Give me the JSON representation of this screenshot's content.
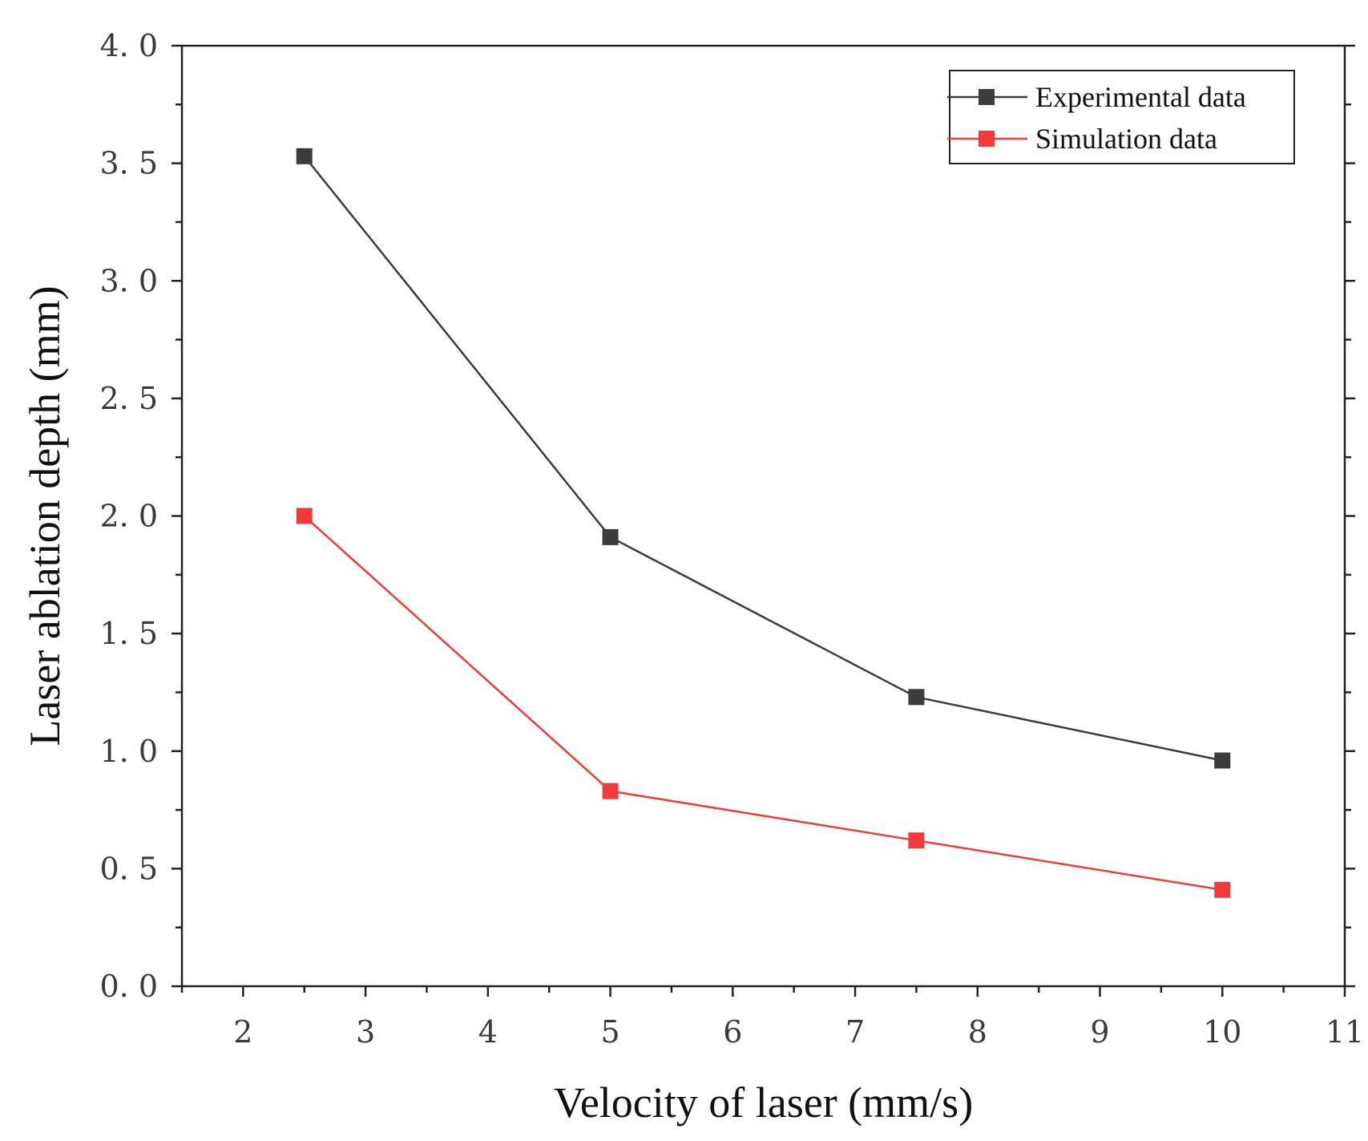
{
  "chart_data": {
    "type": "line",
    "title": "",
    "xlabel": "Velocity of laser (mm/s)",
    "ylabel": "Laser ablation depth (mm)",
    "xlim": [
      1.5,
      11
    ],
    "ylim": [
      0,
      4
    ],
    "x_ticks": [
      2,
      3,
      4,
      5,
      6,
      7,
      8,
      9,
      10,
      11
    ],
    "x_tick_labels": [
      "2",
      "3",
      "4",
      "5",
      "6",
      "7",
      "8",
      "9",
      "10",
      "11"
    ],
    "y_ticks": [
      0,
      0.5,
      1.0,
      1.5,
      2.0,
      2.5,
      3.0,
      3.5,
      4.0
    ],
    "y_tick_labels": [
      "0. 0",
      "0. 5",
      "1. 0",
      "1. 5",
      "2. 0",
      "2. 5",
      "3. 0",
      "3. 5",
      "4. 0"
    ],
    "x_minor_step": 0.5,
    "y_minor_step": 0.25,
    "grid": false,
    "legend_position": "top-right",
    "series": [
      {
        "name": "Experimental data",
        "color": "#3c3c3c",
        "marker": "square",
        "x": [
          2.5,
          5,
          7.5,
          10
        ],
        "y": [
          3.53,
          1.91,
          1.23,
          0.96
        ]
      },
      {
        "name": "Simulation data",
        "color": "#f23a3a",
        "marker": "square",
        "x": [
          2.5,
          5,
          7.5,
          10
        ],
        "y": [
          2.0,
          0.83,
          0.62,
          0.41
        ]
      }
    ]
  }
}
